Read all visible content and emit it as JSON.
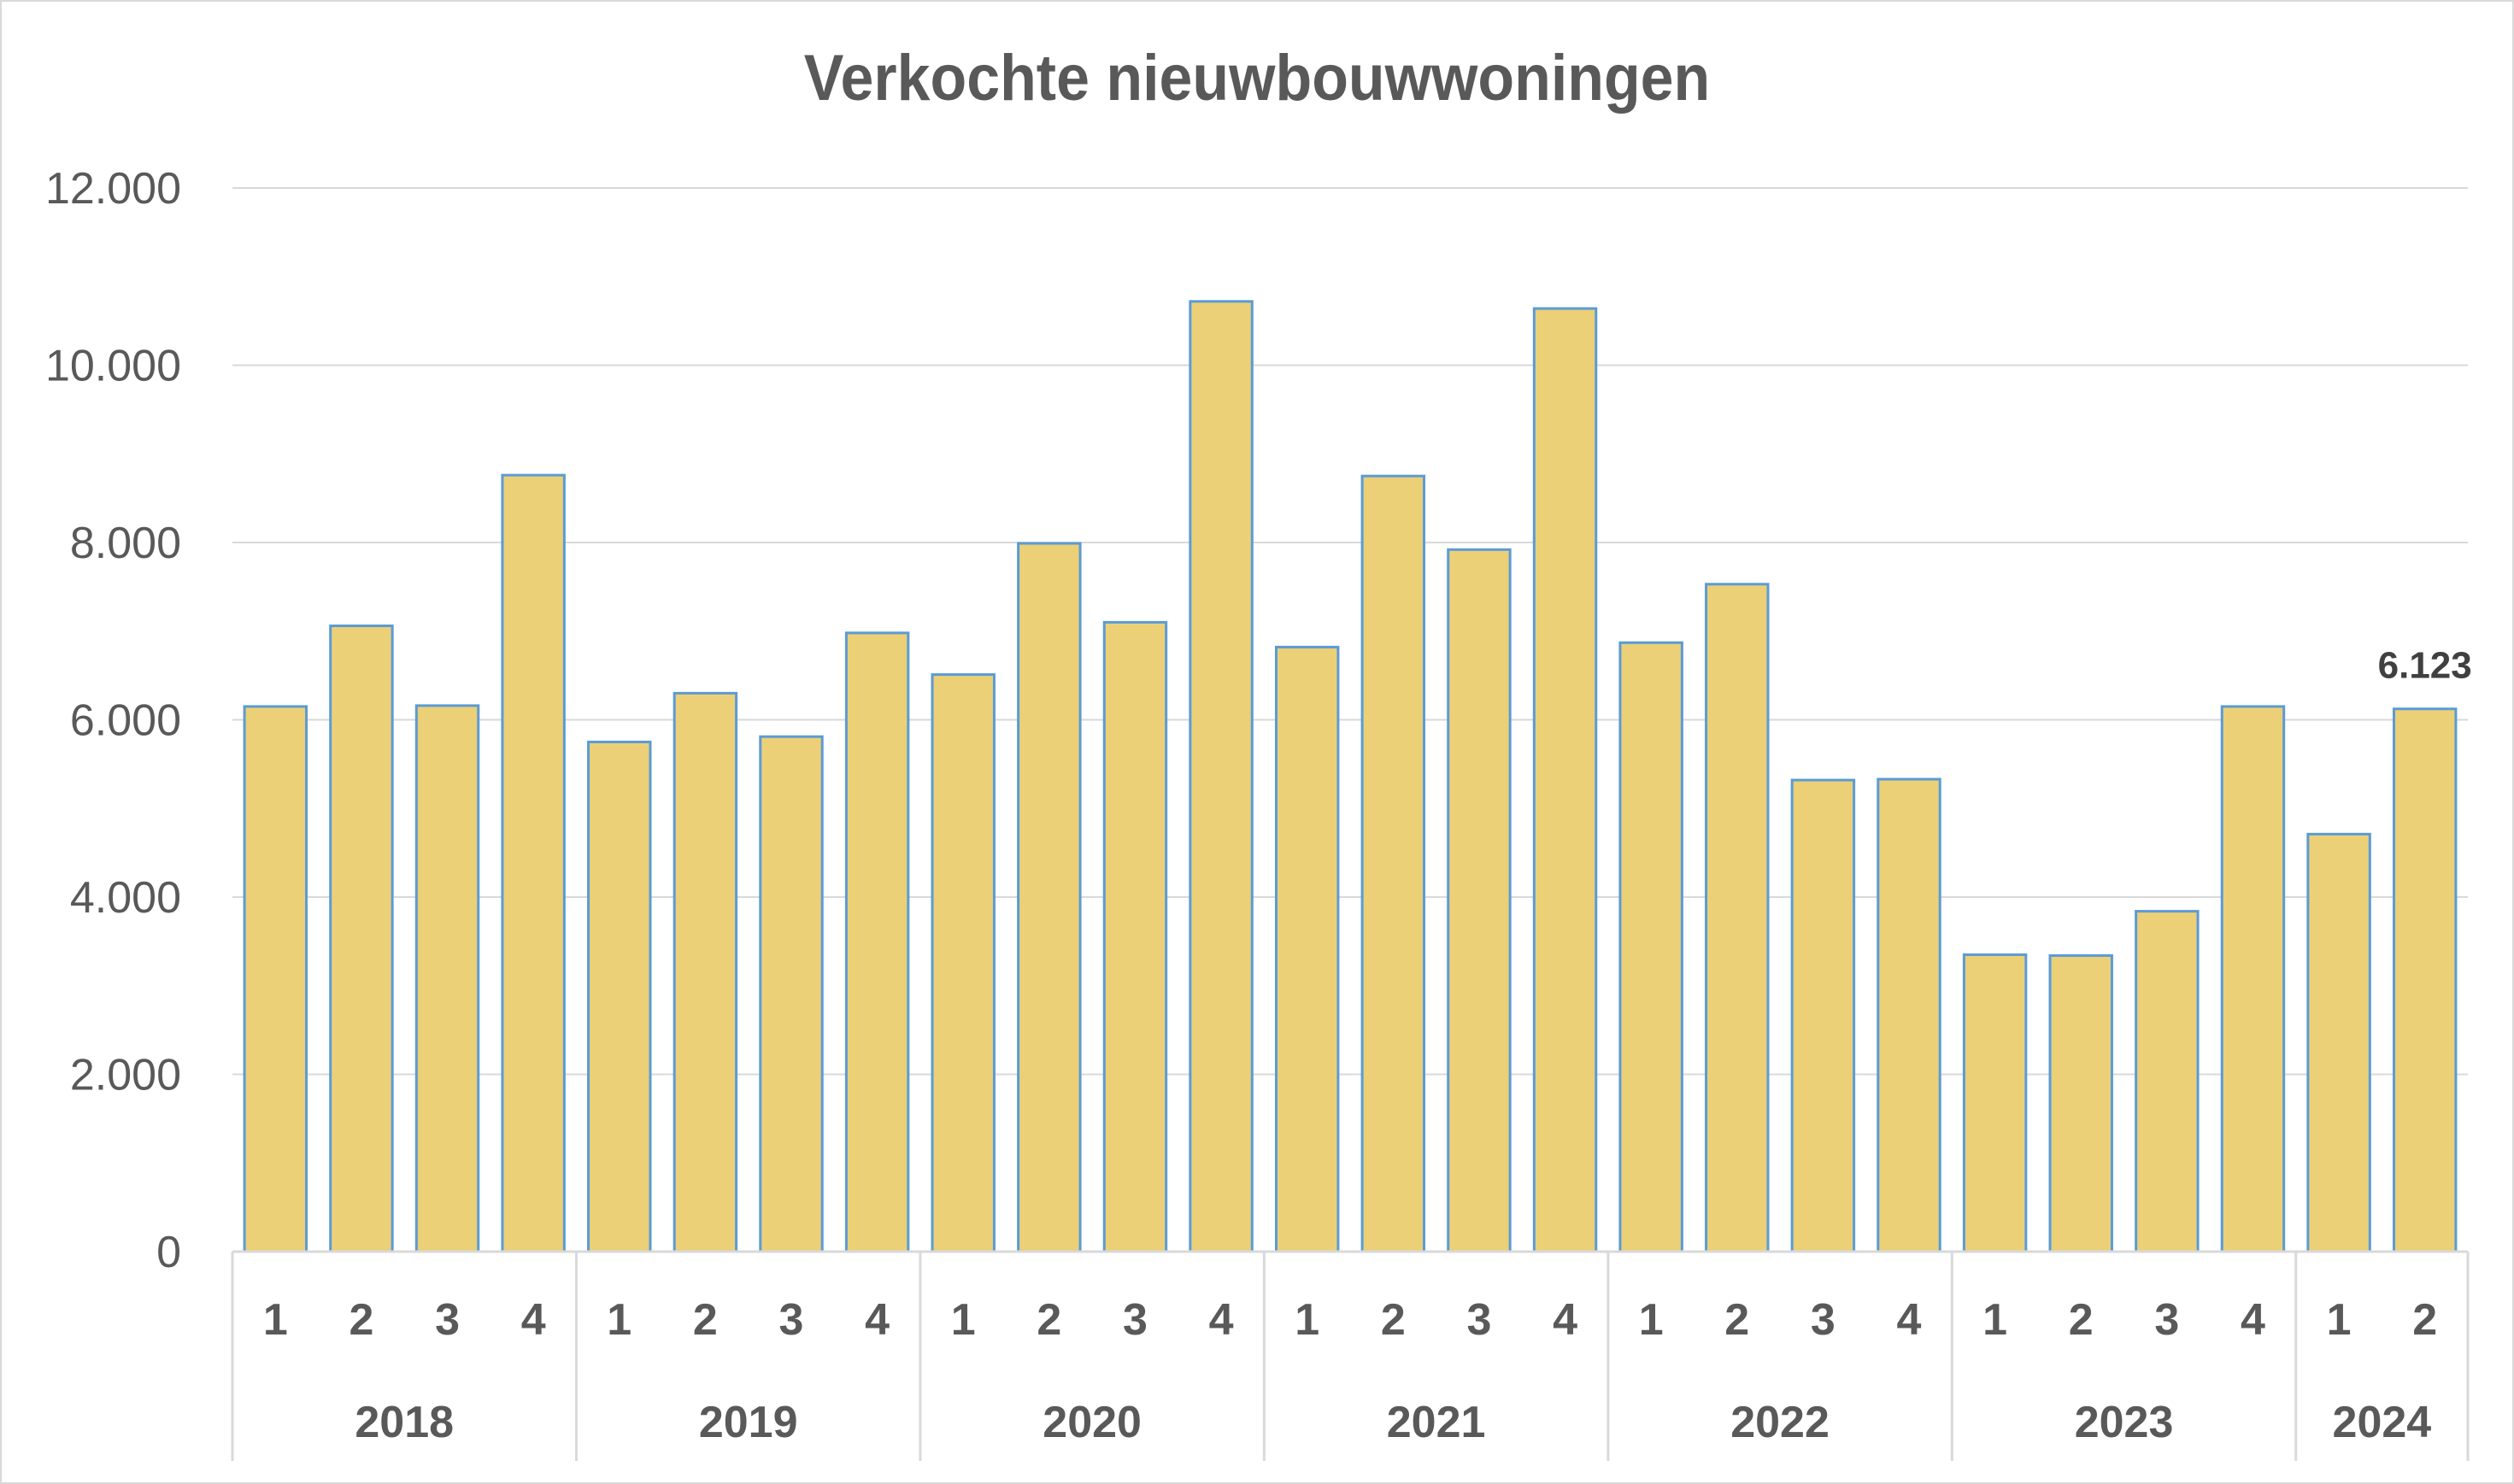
{
  "chart_data": {
    "type": "bar",
    "title": "Verkochte nieuwbouwwoningen",
    "xlabel": "",
    "ylabel": "",
    "ylim": [
      0,
      12000
    ],
    "yticks": [
      "0",
      "2.000",
      "4.000",
      "6.000",
      "8.000",
      "10.000",
      "12.000"
    ],
    "grid": true,
    "legend": "none",
    "bar_color": "#EBD077",
    "bar_border_color": "#5B9BD5",
    "years": [
      {
        "label": "2018",
        "quarters": [
          "1",
          "2",
          "3",
          "4"
        ]
      },
      {
        "label": "2019",
        "quarters": [
          "1",
          "2",
          "3",
          "4"
        ]
      },
      {
        "label": "2020",
        "quarters": [
          "1",
          "2",
          "3",
          "4"
        ]
      },
      {
        "label": "2021",
        "quarters": [
          "1",
          "2",
          "3",
          "4"
        ]
      },
      {
        "label": "2022",
        "quarters": [
          "1",
          "2",
          "3",
          "4"
        ]
      },
      {
        "label": "2023",
        "quarters": [
          "1",
          "2",
          "3",
          "4"
        ]
      },
      {
        "label": "2024",
        "quarters": [
          "1",
          "2"
        ]
      }
    ],
    "values": [
      6150,
      7060,
      6160,
      8760,
      5750,
      6300,
      5810,
      6980,
      6510,
      7990,
      7100,
      10720,
      6820,
      8750,
      7920,
      10640,
      6870,
      7530,
      5320,
      5330,
      3350,
      3340,
      3840,
      6150,
      4710,
      6123
    ],
    "data_labels": [
      {
        "index": 25,
        "text": "6.123"
      }
    ]
  }
}
